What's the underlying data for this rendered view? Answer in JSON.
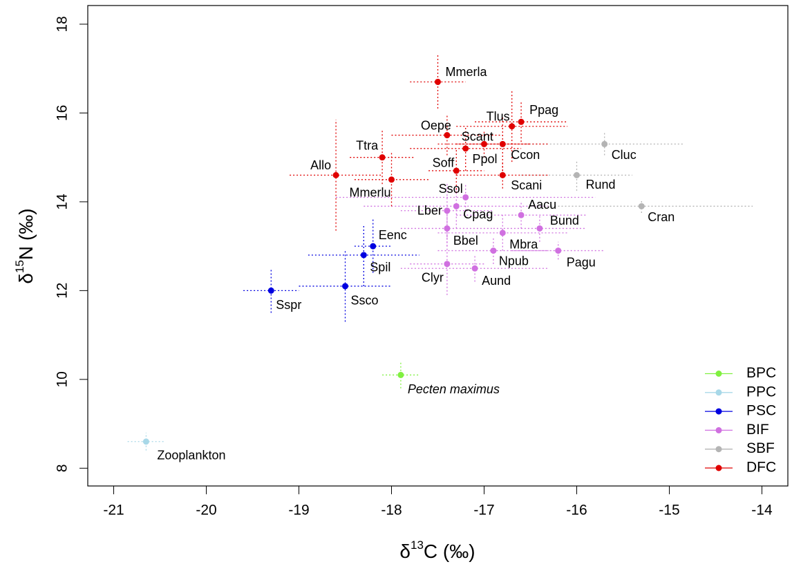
{
  "chart_data": {
    "type": "scatter",
    "x_label": {
      "prefix": "δ",
      "sup": "13",
      "suffix": "C (‰)"
    },
    "y_label": {
      "prefix": "δ",
      "sup": "15",
      "suffix": "N (‰)"
    },
    "xlim": [
      -21.28,
      -13.72
    ],
    "ylim": [
      7.6,
      18.42
    ],
    "xticks": [
      -21,
      -20,
      -19,
      -18,
      -17,
      -16,
      -15,
      -14
    ],
    "yticks": [
      8,
      10,
      12,
      14,
      16,
      18
    ],
    "legend": "lower right",
    "series": [
      {
        "name": "BPC",
        "color": "#80f040",
        "label_style": "italic",
        "labels": [
          "Pecten maximus"
        ],
        "x": [
          -17.9
        ],
        "values": [
          10.1
        ],
        "xerr": [
          0.2
        ],
        "yerr": [
          0.3
        ]
      },
      {
        "name": "PPC",
        "color": "#a8d8e8",
        "labels": [
          "Zooplankton"
        ],
        "x": [
          -20.65
        ],
        "values": [
          8.6
        ],
        "xerr": [
          0.2
        ],
        "yerr": [
          0.2
        ]
      },
      {
        "name": "PSC",
        "color": "#0000e0",
        "labels": [
          "Eenc",
          "Spil",
          "Sspr",
          "Ssco"
        ],
        "x": [
          -18.2,
          -18.3,
          -19.3,
          -18.5
        ],
        "values": [
          13.0,
          12.8,
          12.0,
          12.1
        ],
        "xerr": [
          0.2,
          0.6,
          0.3,
          0.5
        ],
        "yerr": [
          0.6,
          0.7,
          0.5,
          0.8
        ]
      },
      {
        "name": "BIF",
        "color": "#d070e0",
        "labels": [
          "Ssol",
          "Lber",
          "Cpag",
          "Aacu",
          "Bund",
          "Bbel",
          "Mbra",
          "Npub",
          "Pagu",
          "Clyr",
          "Aund"
        ],
        "x": [
          -17.2,
          -17.4,
          -17.3,
          -16.6,
          -16.4,
          -17.4,
          -16.8,
          -16.9,
          -16.2,
          -17.4,
          -17.1
        ],
        "values": [
          14.1,
          13.8,
          13.9,
          13.7,
          13.4,
          13.4,
          13.3,
          12.9,
          12.9,
          12.6,
          12.5
        ],
        "xerr": [
          1.4,
          0.5,
          1.0,
          0.7,
          0.5,
          0.5,
          0.7,
          0.6,
          0.5,
          0.4,
          0.8
        ],
        "yerr": [
          0.3,
          0.6,
          0.5,
          0.3,
          0.3,
          0.4,
          0.4,
          0.3,
          0.2,
          0.7,
          0.3
        ]
      },
      {
        "name": "SBF",
        "color": "#b4b4b4",
        "labels": [
          "Cluc",
          "Rund",
          "Cran"
        ],
        "x": [
          -15.7,
          -16.0,
          -15.3
        ],
        "values": [
          15.3,
          14.6,
          13.9
        ],
        "xerr": [
          0.85,
          0.6,
          1.2
        ],
        "yerr": [
          0.25,
          0.35,
          0.15
        ]
      },
      {
        "name": "DFC",
        "color": "#e00000",
        "labels": [
          "Mmerla",
          "Ppag",
          "Tlus",
          "Oepe",
          "Scant",
          "Ppol",
          "Ccon",
          "Soff",
          "Scani",
          "Ttra",
          "Allo",
          "Mmerlu"
        ],
        "x": [
          -17.5,
          -16.6,
          -16.7,
          -17.4,
          -17.2,
          -17.0,
          -16.8,
          -17.3,
          -16.8,
          -18.1,
          -18.6,
          -18.0
        ],
        "values": [
          16.7,
          15.8,
          15.7,
          15.5,
          15.2,
          15.3,
          15.3,
          14.7,
          14.6,
          15.0,
          14.6,
          14.5
        ],
        "xerr": [
          0.3,
          0.5,
          0.6,
          0.6,
          0.6,
          0.5,
          0.5,
          0.3,
          0.5,
          0.35,
          0.5,
          0.4
        ],
        "yerr": [
          0.6,
          0.45,
          0.8,
          0.45,
          0.5,
          0.3,
          0.6,
          0.5,
          0.3,
          0.6,
          1.25,
          0.6
        ]
      }
    ]
  }
}
